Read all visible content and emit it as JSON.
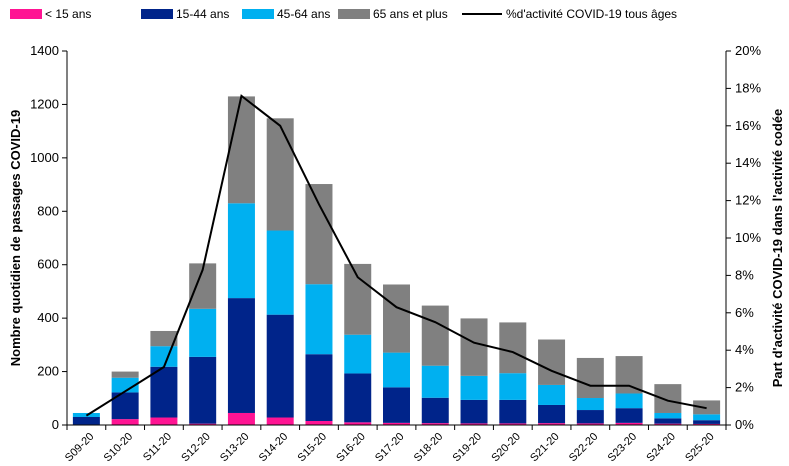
{
  "chart_data": {
    "type": "bar",
    "stacked": true,
    "categories": [
      "S09-20",
      "S10-20",
      "S11-20",
      "S12-20",
      "S13-20",
      "S14-20",
      "S15-20",
      "S16-20",
      "S17-20",
      "S18-20",
      "S19-20",
      "S20-20",
      "S21-20",
      "S22-20",
      "S23-20",
      "S24-20",
      "S25-20"
    ],
    "series": [
      {
        "name": "< 15 ans",
        "color": "#ff1493",
        "values": [
          2,
          22,
          28,
          5,
          45,
          28,
          15,
          10,
          8,
          7,
          6,
          6,
          7,
          6,
          8,
          5,
          4
        ]
      },
      {
        "name": "15-44 ans",
        "color": "#00248a",
        "values": [
          28,
          100,
          190,
          250,
          430,
          385,
          250,
          183,
          133,
          95,
          88,
          88,
          68,
          50,
          55,
          20,
          14
        ]
      },
      {
        "name": "45-64 ans",
        "color": "#00b0f0",
        "values": [
          15,
          55,
          77,
          180,
          355,
          315,
          262,
          145,
          130,
          120,
          90,
          100,
          75,
          45,
          55,
          20,
          22
        ]
      },
      {
        "name": "65 ans et plus",
        "color": "#808080",
        "values": [
          0,
          23,
          57,
          170,
          400,
          420,
          375,
          265,
          255,
          225,
          215,
          190,
          170,
          150,
          140,
          108,
          52
        ]
      }
    ],
    "line": {
      "name": "%d'activité COVID-19 tous âges",
      "color": "#000000",
      "axis": "right",
      "values": [
        0.5,
        1.8,
        3.1,
        8.3,
        17.6,
        16.0,
        11.8,
        7.9,
        6.3,
        5.5,
        4.4,
        3.9,
        2.9,
        2.1,
        2.1,
        1.3,
        0.9
      ]
    },
    "ylabel": "Nombre quotidien de passages COVID-19",
    "ylabel_right": "Part d'activité COVID-19 dans l'activité codée",
    "ylim": [
      0,
      1400
    ],
    "yticks": [
      0,
      200,
      400,
      600,
      800,
      1000,
      1200,
      1400
    ],
    "ylim_right": [
      0,
      20
    ],
    "yticks_right": [
      "0%",
      "2%",
      "4%",
      "6%",
      "8%",
      "10%",
      "12%",
      "14%",
      "16%",
      "18%",
      "20%"
    ],
    "legend_position": "top",
    "grid": false
  }
}
